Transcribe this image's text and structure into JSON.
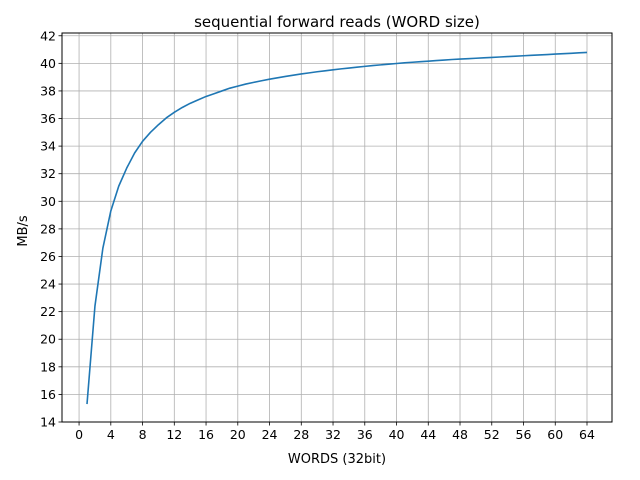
{
  "chart_data": {
    "type": "line",
    "title": "sequential forward reads (WORD size)",
    "xlabel": "WORDS (32bit)",
    "ylabel": "MB/s",
    "xlim": [
      -2.15,
      67.15
    ],
    "ylim": [
      14,
      42.2
    ],
    "xticks": [
      0,
      4,
      8,
      12,
      16,
      20,
      24,
      28,
      32,
      36,
      40,
      44,
      48,
      52,
      56,
      60,
      64
    ],
    "yticks": [
      14,
      16,
      18,
      20,
      22,
      24,
      26,
      28,
      30,
      32,
      34,
      36,
      38,
      40,
      42
    ],
    "grid": true,
    "line_color": "#1f77b4",
    "series": [
      {
        "x": [
          1,
          2,
          3,
          4,
          5,
          6,
          7,
          8,
          9,
          10,
          11,
          12,
          13,
          14,
          15,
          16,
          17,
          18,
          19,
          20,
          21,
          22,
          23,
          24,
          25,
          26,
          27,
          28,
          29,
          30,
          31,
          32,
          33,
          34,
          35,
          36,
          37,
          38,
          39,
          40,
          41,
          42,
          43,
          44,
          45,
          46,
          47,
          48,
          49,
          50,
          51,
          52,
          53,
          54,
          55,
          56,
          57,
          58,
          59,
          60,
          61,
          62,
          63,
          64
        ],
        "values": [
          15.3,
          22.4,
          26.6,
          29.3,
          31.1,
          32.4,
          33.5,
          34.35,
          35.0,
          35.55,
          36.05,
          36.45,
          36.8,
          37.1,
          37.35,
          37.6,
          37.8,
          38.0,
          38.2,
          38.35,
          38.5,
          38.62,
          38.74,
          38.85,
          38.95,
          39.05,
          39.14,
          39.23,
          39.31,
          39.39,
          39.46,
          39.53,
          39.6,
          39.66,
          39.72,
          39.78,
          39.84,
          39.89,
          39.94,
          39.99,
          40.04,
          40.08,
          40.12,
          40.16,
          40.2,
          40.24,
          40.28,
          40.31,
          40.34,
          40.37,
          40.4,
          40.43,
          40.46,
          40.49,
          40.52,
          40.55,
          40.58,
          40.61,
          40.64,
          40.67,
          40.7,
          40.73,
          40.76,
          40.79
        ]
      }
    ]
  }
}
